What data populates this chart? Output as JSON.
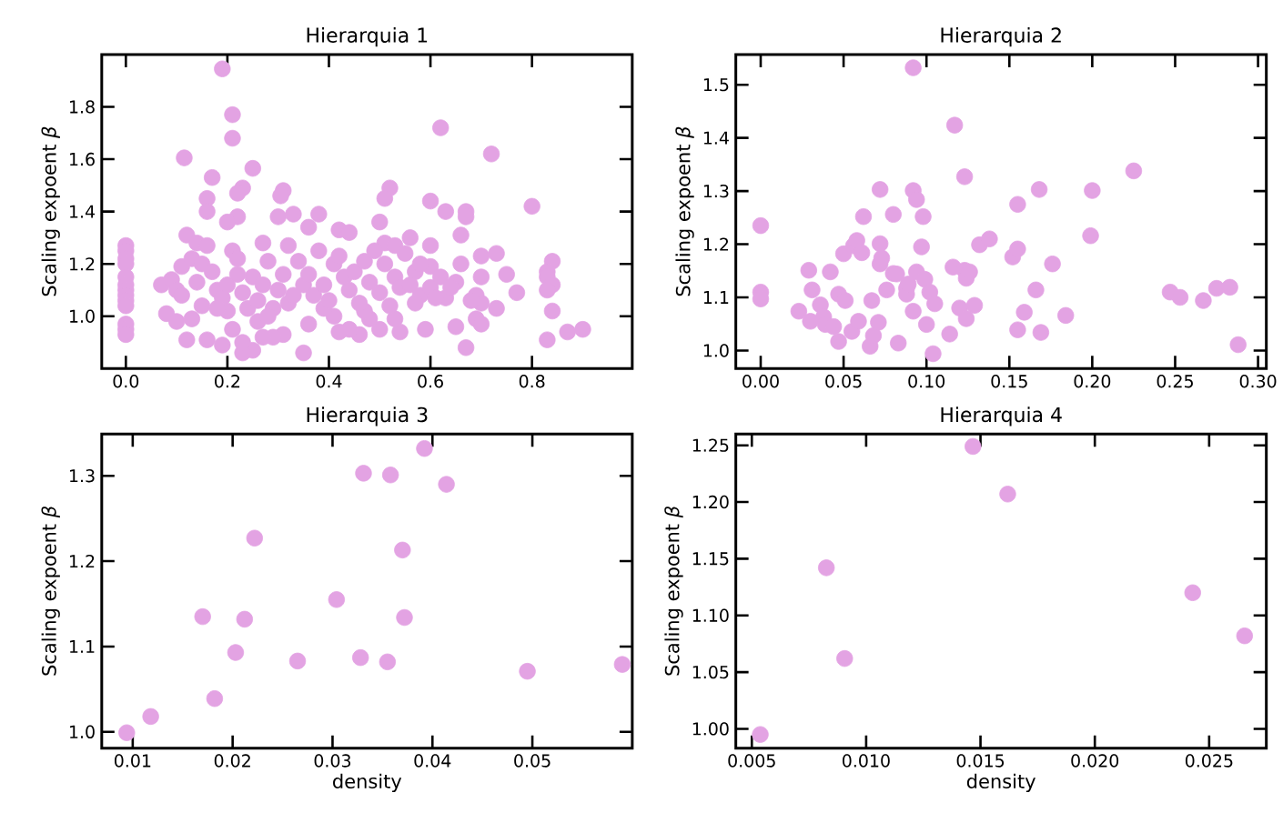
{
  "chart_data": [
    {
      "type": "scatter",
      "title": "Hierarquia 1",
      "ylabel": "Scaling expoent *β*",
      "color": "#e3a3e3",
      "marker": "circle",
      "x": [
        0,
        0,
        0,
        0,
        0,
        0,
        0,
        0,
        0,
        0,
        0,
        0,
        0,
        0.19,
        0.21,
        0.21,
        0.115,
        0.25,
        0.17,
        0.23,
        0.22,
        0.31,
        0.305,
        0.16,
        0.16,
        0.52,
        0.51,
        0.62,
        0.72,
        0.6,
        0.63,
        0.67,
        0.67,
        0.8,
        0.38,
        0.33,
        0.3,
        0.22,
        0.2,
        0.42,
        0.36,
        0.5,
        0.44,
        0.66,
        0.12,
        0.14,
        0.56,
        0.51,
        0.53,
        0.6,
        0.32,
        0.27,
        0.73,
        0.7,
        0.84,
        0.83,
        0.83,
        0.84,
        0.83,
        0.84,
        0.83,
        0.87,
        0.9,
        0.75,
        0.77,
        0.7,
        0.69,
        0.7,
        0.69,
        0.7,
        0.67,
        0.65,
        0.63,
        0.65,
        0.6,
        0.57,
        0.58,
        0.59,
        0.54,
        0.53,
        0.5,
        0.48,
        0.47,
        0.46,
        0.44,
        0.42,
        0.41,
        0.39,
        0.35,
        0.36,
        0.31,
        0.29,
        0.27,
        0.25,
        0.23,
        0.23,
        0.21,
        0.19,
        0.16,
        0.12,
        0.08,
        0.1,
        0.13,
        0.07,
        0.09,
        0.1,
        0.11,
        0.11,
        0.13,
        0.15,
        0.16,
        0.17,
        0.18,
        0.19,
        0.2,
        0.21,
        0.22,
        0.23,
        0.24,
        0.25,
        0.26,
        0.27,
        0.28,
        0.29,
        0.3,
        0.31,
        0.32,
        0.33,
        0.34,
        0.35,
        0.36,
        0.37,
        0.38,
        0.39,
        0.4,
        0.41,
        0.42,
        0.43,
        0.44,
        0.45,
        0.46,
        0.47,
        0.48,
        0.49,
        0.5,
        0.51,
        0.52,
        0.53,
        0.54,
        0.55,
        0.56,
        0.57,
        0.58,
        0.6,
        0.61,
        0.62,
        0.64,
        0.66,
        0.68,
        0.73,
        0.26,
        0.28,
        0.15,
        0.14,
        0.22,
        0.2,
        0.18
      ],
      "values": [
        1.27,
        1.25,
        1.22,
        1.2,
        1.15,
        1.12,
        1.1,
        1.08,
        1.06,
        1.04,
        0.97,
        0.95,
        0.93,
        1.945,
        1.77,
        1.68,
        1.605,
        1.565,
        1.53,
        1.49,
        1.47,
        1.48,
        1.46,
        1.45,
        1.4,
        1.49,
        1.45,
        1.72,
        1.62,
        1.44,
        1.4,
        1.4,
        1.38,
        1.42,
        1.39,
        1.39,
        1.38,
        1.38,
        1.36,
        1.33,
        1.34,
        1.36,
        1.32,
        1.31,
        1.31,
        1.28,
        1.3,
        1.28,
        1.27,
        1.27,
        1.27,
        1.28,
        1.24,
        1.23,
        1.21,
        1.17,
        1.15,
        1.12,
        1.1,
        1.02,
        0.91,
        0.94,
        0.95,
        1.16,
        1.09,
        1.15,
        1.08,
        1.05,
        0.99,
        0.97,
        0.88,
        0.96,
        1.07,
        1.13,
        1.19,
        1.17,
        1.08,
        0.95,
        0.94,
        0.99,
        0.95,
        0.99,
        1.02,
        0.93,
        0.95,
        0.94,
        1.0,
        1.03,
        0.86,
        0.97,
        0.93,
        0.92,
        0.92,
        0.87,
        0.86,
        0.9,
        0.95,
        0.89,
        0.91,
        0.91,
        1.01,
        0.98,
        0.99,
        1.12,
        1.14,
        1.1,
        1.08,
        1.19,
        1.22,
        1.2,
        1.27,
        1.17,
        1.1,
        1.07,
        1.12,
        1.25,
        1.22,
        1.09,
        1.03,
        1.15,
        1.06,
        1.12,
        1.21,
        1.03,
        1.1,
        1.16,
        1.05,
        1.08,
        1.21,
        1.12,
        1.16,
        1.08,
        1.25,
        1.12,
        1.06,
        1.2,
        1.23,
        1.15,
        1.1,
        1.17,
        1.05,
        1.21,
        1.13,
        1.25,
        1.09,
        1.2,
        1.04,
        1.15,
        1.11,
        1.24,
        1.12,
        1.05,
        1.2,
        1.11,
        1.07,
        1.15,
        1.11,
        1.2,
        1.06,
        1.03,
        0.98,
        1.0,
        1.04,
        1.13,
        1.16,
        1.02,
        1.03
      ],
      "xlim": [
        -0.0475,
        0.9975
      ],
      "ylim": [
        0.8,
        2.0
      ],
      "xticks": [
        {
          "value": 0,
          "label": "0.0"
        },
        0.2,
        0.4,
        0.6,
        0.8
      ],
      "yticks": [
        {
          "value": 1,
          "label": "1.0"
        },
        1.2,
        1.4,
        1.6,
        1.8
      ]
    },
    {
      "type": "scatter",
      "title": "Hierarquia 2",
      "ylabel": "Scaling expoent *β*",
      "color": "#e3a3e3",
      "marker": "circle",
      "x": [
        0.0,
        0.0,
        0.0,
        0.023,
        0.029,
        0.031,
        0.03,
        0.036,
        0.038,
        0.039,
        0.042,
        0.044,
        0.047,
        0.047,
        0.05,
        0.051,
        0.055,
        0.056,
        0.058,
        0.059,
        0.061,
        0.062,
        0.067,
        0.066,
        0.068,
        0.071,
        0.072,
        0.072,
        0.072,
        0.073,
        0.076,
        0.08,
        0.08,
        0.082,
        0.083,
        0.088,
        0.088,
        0.089,
        0.092,
        0.092,
        0.092,
        0.094,
        0.094,
        0.097,
        0.098,
        0.099,
        0.1,
        0.102,
        0.104,
        0.105,
        0.114,
        0.116,
        0.117,
        0.12,
        0.123,
        0.123,
        0.124,
        0.124,
        0.126,
        0.129,
        0.132,
        0.138,
        0.152,
        0.155,
        0.155,
        0.155,
        0.159,
        0.166,
        0.168,
        0.169,
        0.176,
        0.184,
        0.199,
        0.2,
        0.225,
        0.247,
        0.253,
        0.267,
        0.275,
        0.283,
        0.288
      ],
      "values": [
        1.235,
        1.11,
        1.097,
        1.074,
        1.151,
        1.114,
        1.055,
        1.086,
        1.063,
        1.049,
        1.148,
        1.045,
        1.017,
        1.106,
        1.182,
        1.094,
        1.036,
        1.197,
        1.207,
        1.055,
        1.184,
        1.252,
        1.094,
        1.008,
        1.028,
        1.053,
        1.201,
        1.303,
        1.163,
        1.174,
        1.114,
        1.256,
        1.145,
        1.144,
        1.014,
        1.117,
        1.106,
        1.125,
        1.532,
        1.301,
        1.074,
        1.284,
        1.148,
        1.195,
        1.252,
        1.134,
        1.049,
        1.11,
        0.994,
        1.088,
        1.031,
        1.157,
        1.424,
        1.08,
        1.151,
        1.327,
        1.06,
        1.136,
        1.148,
        1.085,
        1.199,
        1.21,
        1.176,
        1.191,
        1.275,
        1.039,
        1.072,
        1.114,
        1.303,
        1.034,
        1.163,
        1.066,
        1.216,
        1.301,
        1.338,
        1.11,
        1.1,
        1.094,
        1.117,
        1.119,
        1.011
      ],
      "xlim": [
        -0.015,
        0.305
      ],
      "ylim": [
        0.966,
        1.557
      ],
      "xticks": [
        {
          "value": 0,
          "label": "0.00"
        },
        0.05,
        {
          "value": 0.1,
          "label": "0.10"
        },
        0.15,
        {
          "value": 0.2,
          "label": "0.20"
        },
        0.25,
        {
          "value": 0.3,
          "label": "0.30"
        }
      ],
      "yticks": [
        {
          "value": 1,
          "label": "1.0"
        },
        1.1,
        1.2,
        1.3,
        1.4,
        1.5
      ]
    },
    {
      "type": "scatter",
      "title": "Hierarquia 3",
      "xlabel": "density",
      "ylabel": "Scaling expoent *β*",
      "color": "#e3a3e3",
      "marker": "circle",
      "x": [
        0.0094,
        0.0118,
        0.017,
        0.0182,
        0.0203,
        0.0212,
        0.0222,
        0.0265,
        0.0304,
        0.0328,
        0.0331,
        0.0355,
        0.0358,
        0.037,
        0.0372,
        0.0392,
        0.0414,
        0.0495,
        0.059
      ],
      "values": [
        0.999,
        1.018,
        1.135,
        1.039,
        1.093,
        1.132,
        1.227,
        1.083,
        1.155,
        1.087,
        1.303,
        1.082,
        1.301,
        1.213,
        1.134,
        1.332,
        1.29,
        1.071,
        1.079
      ],
      "xlim": [
        0.0069,
        0.06
      ],
      "ylim": [
        0.981,
        1.349
      ],
      "xticks": [
        0.01,
        0.02,
        0.03,
        0.04,
        0.05
      ],
      "yticks": [
        {
          "value": 1,
          "label": "1.0"
        },
        1.1,
        1.2,
        1.3
      ]
    },
    {
      "type": "scatter",
      "title": "Hierarquia 4",
      "xlabel": "density",
      "ylabel": "Scaling expoent *β*",
      "color": "#e3a3e3",
      "marker": "circle",
      "x": [
        0.00537,
        0.00826,
        0.00906,
        0.01467,
        0.01619,
        0.02428,
        0.02655
      ],
      "values": [
        0.995,
        1.142,
        1.062,
        1.249,
        1.207,
        1.12,
        1.082
      ],
      "xlim": [
        0.0043,
        0.0275
      ],
      "ylim": [
        0.983,
        1.26
      ],
      "xticks": [
        0.005,
        {
          "value": 0.01,
          "label": "0.010"
        },
        0.015,
        {
          "value": 0.02,
          "label": "0.020"
        },
        0.025
      ],
      "yticks": [
        {
          "value": 1,
          "label": "1.00"
        },
        1.05,
        {
          "value": 1.1,
          "label": "1.10"
        },
        1.15,
        {
          "value": 1.2,
          "label": "1.20"
        },
        1.25
      ]
    }
  ]
}
